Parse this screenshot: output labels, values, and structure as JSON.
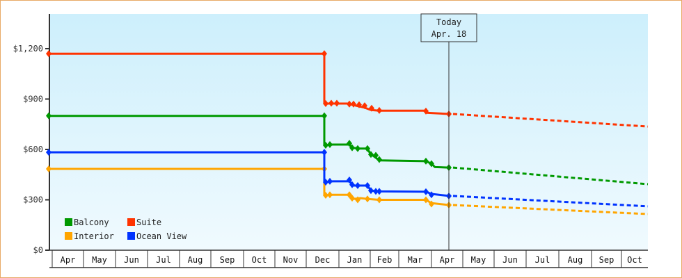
{
  "chart_data": {
    "type": "line",
    "title": "",
    "xlabel": "",
    "ylabel": "",
    "ylim": [
      0,
      1400
    ],
    "y_ticks": [
      "$0",
      "$300",
      "$600",
      "$900",
      "$1,200"
    ],
    "y_tick_values": [
      0,
      300,
      600,
      900,
      1200
    ],
    "x_tick_labels": [
      "Apr",
      "May",
      "Jun",
      "Jul",
      "Aug",
      "Sep",
      "Oct",
      "Nov",
      "Dec",
      "Jan",
      "Feb",
      "Mar",
      "Apr",
      "May",
      "Jun",
      "Jul",
      "Aug",
      "Sep",
      "Oct"
    ],
    "grid": false,
    "legend_position": "bottom-left inside",
    "annotation": {
      "line1": "Today",
      "line2": "Apr. 18"
    },
    "series": [
      {
        "name": "Balcony",
        "color": "#009900",
        "historical": [
          [
            "Apr",
            800
          ],
          [
            "Dec",
            800
          ],
          [
            "Dec",
            625
          ],
          [
            "Jan",
            635
          ],
          [
            "Jan",
            605
          ],
          [
            "Feb",
            560
          ],
          [
            "Feb",
            530
          ],
          [
            "Mar",
            530
          ],
          [
            "Mar",
            495
          ],
          [
            "Apr 18",
            492
          ]
        ],
        "forecast": [
          [
            "Apr 18",
            492
          ],
          [
            "Oct",
            393
          ]
        ]
      },
      {
        "name": "Suite",
        "color": "#ff3300",
        "historical": [
          [
            "Apr",
            1170
          ],
          [
            "Dec",
            1170
          ],
          [
            "Dec",
            873
          ],
          [
            "Jan",
            873
          ],
          [
            "Jan",
            860
          ],
          [
            "Feb",
            835
          ],
          [
            "Mar",
            828
          ],
          [
            "Apr 18",
            811
          ]
        ],
        "forecast": [
          [
            "Apr 18",
            811
          ],
          [
            "Oct",
            736
          ]
        ]
      },
      {
        "name": "Interior",
        "color": "#ffa500",
        "historical": [
          [
            "Apr",
            484
          ],
          [
            "Dec",
            484
          ],
          [
            "Dec",
            327
          ],
          [
            "Jan",
            327
          ],
          [
            "Jan",
            305
          ],
          [
            "Feb",
            300
          ],
          [
            "Mar",
            300
          ],
          [
            "Mar",
            275
          ],
          [
            "Apr 18",
            269
          ]
        ],
        "forecast": [
          [
            "Apr 18",
            269
          ],
          [
            "Oct",
            215
          ]
        ]
      },
      {
        "name": "Ocean View",
        "color": "#0033ff",
        "historical": [
          [
            "Apr",
            583
          ],
          [
            "Dec",
            583
          ],
          [
            "Dec",
            405
          ],
          [
            "Jan",
            410
          ],
          [
            "Jan",
            385
          ],
          [
            "Feb",
            350
          ],
          [
            "Mar",
            348
          ],
          [
            "Mar",
            330
          ],
          [
            "Apr 18",
            323
          ]
        ],
        "forecast": [
          [
            "Apr 18",
            323
          ],
          [
            "Oct",
            261
          ]
        ]
      }
    ]
  },
  "legend": [
    {
      "label": "Balcony",
      "color": "#009900"
    },
    {
      "label": "Suite",
      "color": "#ff3300"
    },
    {
      "label": "Interior",
      "color": "#ffa500"
    },
    {
      "label": "Ocean View",
      "color": "#0033ff"
    }
  ],
  "today": {
    "line1": "Today",
    "line2": "Apr. 18"
  }
}
